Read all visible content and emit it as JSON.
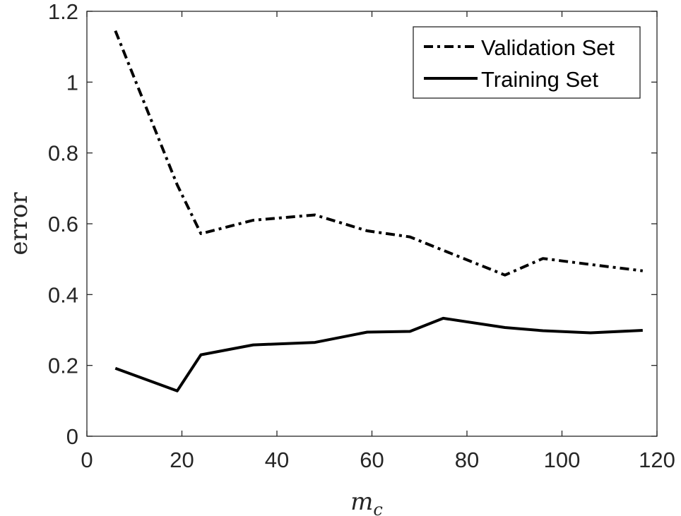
{
  "chart_data": {
    "type": "line",
    "title": "",
    "xlabel": "m_c",
    "xlabel_main": "m",
    "xlabel_sub": "c",
    "ylabel": "error",
    "xlim": [
      0,
      120
    ],
    "ylim": [
      0,
      1.2
    ],
    "xticks": [
      0,
      20,
      40,
      60,
      80,
      100,
      120
    ],
    "yticks": [
      0,
      0.2,
      0.4,
      0.6,
      0.8,
      1,
      1.2
    ],
    "xtick_labels": [
      "0",
      "20",
      "40",
      "60",
      "80",
      "100",
      "120"
    ],
    "ytick_labels": [
      "0",
      "0.2",
      "0.4",
      "0.6",
      "0.8",
      "1",
      "1.2"
    ],
    "grid": false,
    "legend_position": "top-right",
    "series": [
      {
        "name": "Validation Set",
        "style": "dash-dot",
        "color": "#000000",
        "x": [
          6,
          19,
          24,
          35,
          48,
          59,
          68,
          75,
          88,
          96,
          106,
          117
        ],
        "y": [
          1.145,
          0.71,
          0.572,
          0.61,
          0.625,
          0.58,
          0.563,
          0.525,
          0.455,
          0.502,
          0.485,
          0.467
        ]
      },
      {
        "name": "Training Set",
        "style": "solid",
        "color": "#000000",
        "x": [
          6,
          19,
          24,
          35,
          48,
          59,
          68,
          75,
          88,
          96,
          106,
          117
        ],
        "y": [
          0.192,
          0.128,
          0.23,
          0.258,
          0.265,
          0.294,
          0.296,
          0.333,
          0.307,
          0.298,
          0.292,
          0.299
        ]
      }
    ]
  }
}
